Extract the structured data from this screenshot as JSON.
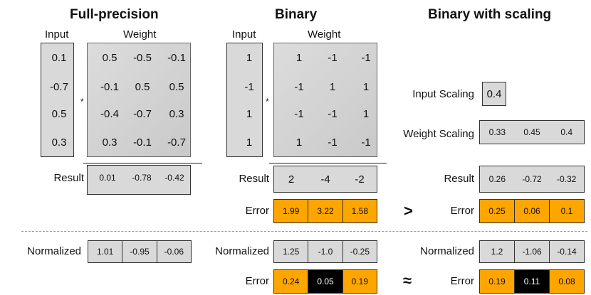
{
  "headers": {
    "full_precision": "Full-precision",
    "binary": "Binary",
    "binary_scaling": "Binary with scaling"
  },
  "labels": {
    "input": "Input",
    "weight": "Weight",
    "result": "Result",
    "error": "Error",
    "normalized": "Normalized",
    "input_scaling": "Input Scaling",
    "weight_scaling": "Weight Scaling",
    "multiply": "*"
  },
  "full_precision": {
    "input": [
      "0.1",
      "-0.7",
      "0.5",
      "0.3"
    ],
    "weight": [
      [
        "0.5",
        "-0.5",
        "-0.1"
      ],
      [
        "-0.1",
        "0.5",
        "0.5"
      ],
      [
        "-0.4",
        "-0.7",
        "0.3"
      ],
      [
        "0.3",
        "-0.1",
        "-0.7"
      ]
    ],
    "result": [
      "0.01",
      "-0.78",
      "-0.42"
    ],
    "normalized": [
      "1.01",
      "-0.95",
      "-0.06"
    ]
  },
  "binary": {
    "input": [
      "1",
      "-1",
      "1",
      "1"
    ],
    "weight": [
      [
        "1",
        "-1",
        "-1"
      ],
      [
        "-1",
        "1",
        "1"
      ],
      [
        "-1",
        "-1",
        "1"
      ],
      [
        "1",
        "-1",
        "-1"
      ]
    ],
    "result": [
      "2",
      "-4",
      "-2"
    ],
    "error": [
      "1.99",
      "3.22",
      "1.58"
    ],
    "normalized": [
      "1.25",
      "-1.0",
      "-0.25"
    ],
    "norm_error": [
      "0.24",
      "0.05",
      "0.19"
    ]
  },
  "scaling": {
    "input_scaling": "0.4",
    "weight_scaling": [
      "0.33",
      "0.45",
      "0.4"
    ],
    "result": [
      "0.26",
      "-0.72",
      "-0.32"
    ],
    "error": [
      "0.25",
      "0.06",
      "0.1"
    ],
    "normalized": [
      "1.2",
      "-1.06",
      "-0.14"
    ],
    "norm_error": [
      "0.19",
      "0.11",
      "0.08"
    ]
  },
  "comparisons": {
    "greater": ">",
    "approx": "≈"
  },
  "colors": {
    "error_fill": "#ffa500",
    "highlight_fill": "#000000",
    "cell_fill": "#d9d9d9"
  }
}
